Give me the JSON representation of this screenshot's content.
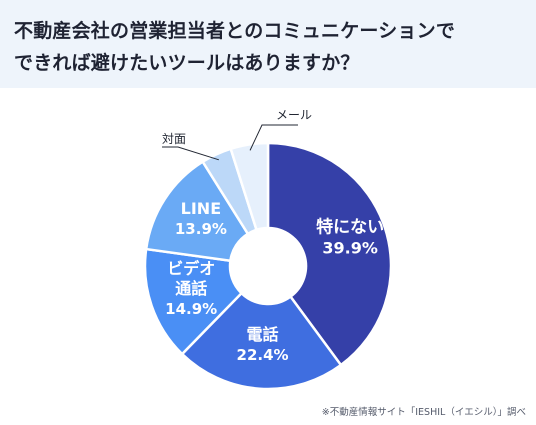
{
  "title": {
    "line1": "不動産会社の営業担当者とのコミュニケーションで",
    "line2": "できれば避けたいツールはありますか？"
  },
  "source": "※不動産情報サイト「IESHIL（イエシル）」調べ",
  "colors": {
    "header_bg": "#eef4fb",
    "slices": [
      "#3540a8",
      "#3f6ee0",
      "#4a8ff5",
      "#6aaaf5",
      "#bcd8f8",
      "#e6f0fc"
    ]
  },
  "chart_data": {
    "type": "pie",
    "title": "不動産会社の営業担当者とのコミュニケーションでできれば避けたいツールはありますか？",
    "slices": [
      {
        "label": "特にない",
        "value": 39.9,
        "value_label": "39.9%"
      },
      {
        "label": "電話",
        "value": 22.4,
        "value_label": "22.4%"
      },
      {
        "label": "ビデオ通話",
        "label_lines": [
          "ビデオ",
          "通話"
        ],
        "value": 14.9,
        "value_label": "14.9%"
      },
      {
        "label": "LINE",
        "value": 13.9,
        "value_label": "13.9%"
      },
      {
        "label": "対面",
        "value": 4.0,
        "value_label": ""
      },
      {
        "label": "メール",
        "value": 4.9,
        "value_label": ""
      }
    ]
  }
}
